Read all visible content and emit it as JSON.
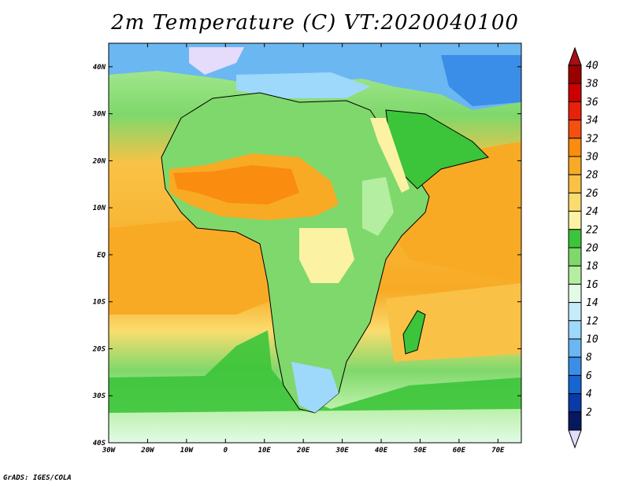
{
  "title": "2m Temperature (C) VT:2020040100",
  "credit": "GrADS: IGES/COLA",
  "map": {
    "lon_range": [
      -30,
      76
    ],
    "lat_range": [
      -40,
      45
    ],
    "lon_ticks": [
      "30W",
      "20W",
      "10W",
      "0",
      "10E",
      "20E",
      "30E",
      "40E",
      "50E",
      "60E",
      "70E"
    ],
    "lat_ticks": [
      "40N",
      "30N",
      "20N",
      "10N",
      "EQ",
      "10S",
      "20S",
      "30S",
      "40S"
    ],
    "lon_tick_values": [
      -30,
      -20,
      -10,
      0,
      10,
      20,
      30,
      40,
      50,
      60,
      70
    ],
    "lat_tick_values": [
      40,
      30,
      20,
      10,
      0,
      -10,
      -20,
      -30,
      -40
    ]
  },
  "colorbar": {
    "levels": [
      "40",
      "38",
      "36",
      "34",
      "32",
      "30",
      "28",
      "26",
      "24",
      "22",
      "20",
      "18",
      "16",
      "14",
      "12",
      "10",
      "8",
      "6",
      "4",
      "2"
    ],
    "colors": [
      "#9b0000",
      "#cc0000",
      "#e8210a",
      "#f5500f",
      "#fa8c0f",
      "#f8aa25",
      "#f9c246",
      "#fadc6e",
      "#fbf2a3",
      "#3cc43a",
      "#7fd86b",
      "#b4eea0",
      "#e2fbe6",
      "#c6ecfb",
      "#9ed8fa",
      "#6ab7f2",
      "#3a8ee8",
      "#1565d2",
      "#0a3aa8",
      "#08185f"
    ],
    "under_color": "#e4dcfa",
    "over_color": "#a50f15"
  }
}
